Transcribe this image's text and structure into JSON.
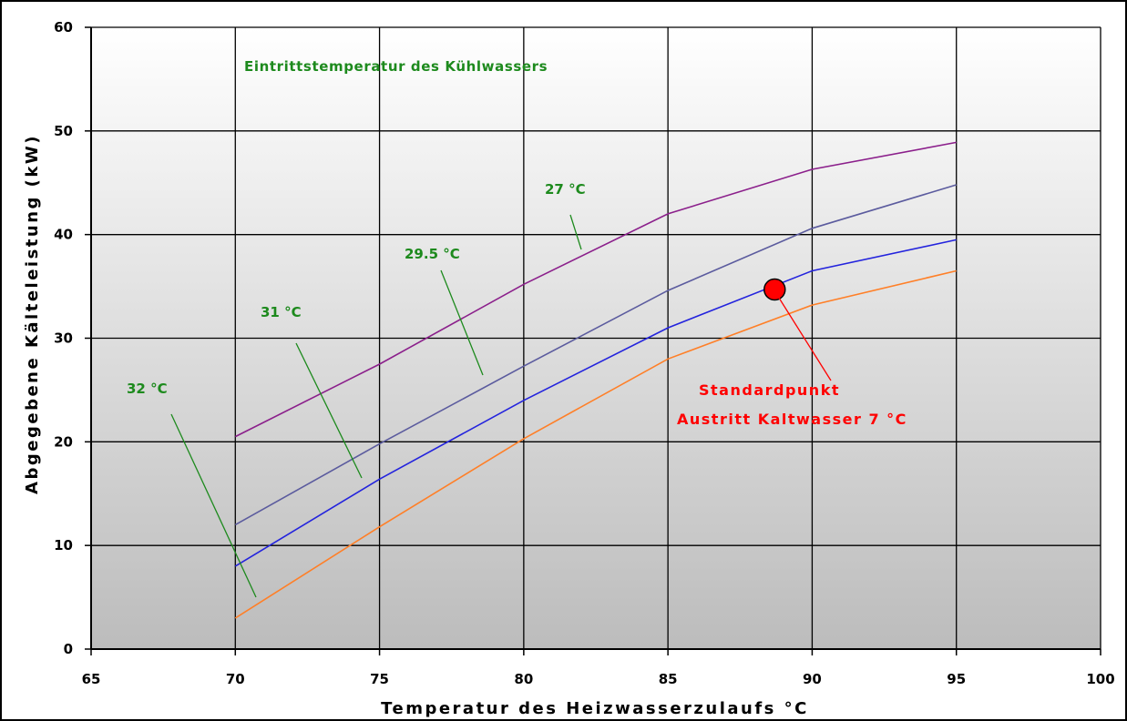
{
  "chart_data": {
    "type": "line",
    "title": "",
    "xlabel": "Temperatur des Heizwasserzulaufs °C",
    "ylabel": "Abgegebene Kälteleistung (kW)",
    "xlim": [
      65,
      100
    ],
    "ylim": [
      0,
      60
    ],
    "x_ticks": [
      "65",
      "70",
      "75",
      "80",
      "85",
      "90",
      "95",
      "100"
    ],
    "y_ticks": [
      "0",
      "10",
      "20",
      "30",
      "40",
      "50",
      "60"
    ],
    "grid": true,
    "legend_title": "Eintrittstemperatur des Kühlwassers",
    "series": [
      {
        "name": "27 °C",
        "color": "#8b1f8b",
        "x": [
          70,
          75,
          80,
          85,
          90,
          95
        ],
        "values": [
          20.5,
          27.5,
          35.2,
          42.0,
          46.3,
          48.9
        ]
      },
      {
        "name": "29.5 °C",
        "color": "#5b5b9e",
        "x": [
          70,
          75,
          80,
          85,
          90,
          95
        ],
        "values": [
          12.0,
          19.8,
          27.3,
          34.6,
          40.6,
          44.8
        ]
      },
      {
        "name": "31 °C",
        "color": "#2323dd",
        "x": [
          70,
          75,
          80,
          85,
          90,
          95
        ],
        "values": [
          8.0,
          16.4,
          24.0,
          31.0,
          36.5,
          39.5
        ]
      },
      {
        "name": "32 °C",
        "color": "#ff7f27",
        "x": [
          70,
          75,
          80,
          85,
          90,
          95
        ],
        "values": [
          3.0,
          11.8,
          20.3,
          28.0,
          33.2,
          36.5
        ]
      }
    ],
    "annotations": [
      {
        "text": "Standardpunkt",
        "color": "#ff0000"
      },
      {
        "text": "Austritt Kaltwasser 7 °C",
        "color": "#ff0000"
      }
    ],
    "standard_point": {
      "x": 88.7,
      "y": 34.7,
      "color": "#ff0000"
    },
    "background_gradient": [
      "#ffffff",
      "#bcbcbc"
    ]
  }
}
